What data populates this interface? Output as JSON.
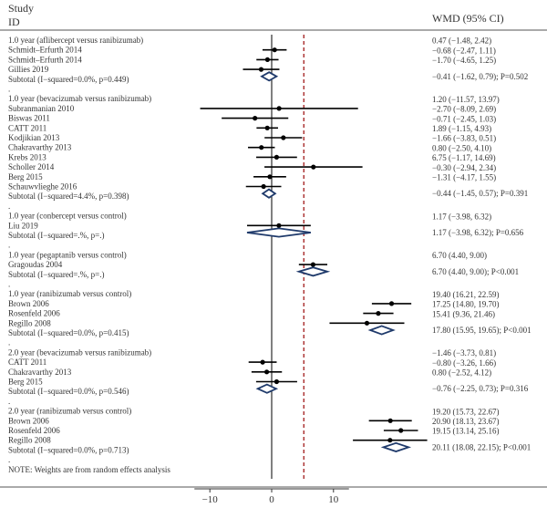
{
  "chart_data": {
    "type": "forest",
    "header": {
      "study_line1": "Study",
      "study_line2": "ID",
      "effect": "WMD (95% CI)"
    },
    "null_line": 0,
    "pooled_reference": 5.2,
    "xticks": [
      -10,
      0,
      10
    ],
    "note": "NOTE: Weights are from random effects analysis",
    "rows": [
      {
        "kind": "group",
        "label": "1.0 year (aflibercept versus ranibizumab)"
      },
      {
        "kind": "study",
        "label": "Schmidt–Erfurth 2014",
        "est": 0.47,
        "lo": -1.48,
        "hi": 2.42,
        "text": "0.47 (−1.48, 2.42)"
      },
      {
        "kind": "study",
        "label": "Schmidt–Erfurth 2014",
        "est": -0.68,
        "lo": -2.47,
        "hi": 1.11,
        "text": "−0.68 (−2.47, 1.11)"
      },
      {
        "kind": "study",
        "label": "Gillies 2019",
        "est": -1.7,
        "lo": -4.65,
        "hi": 1.25,
        "text": "−1.70 (−4.65, 1.25)"
      },
      {
        "kind": "subtotal",
        "label": "Subtotal (I−squared=0.0%, p=0.449)",
        "est": -0.41,
        "lo": -1.62,
        "hi": 0.79,
        "text": "−0.41 (−1.62, 0.79); P=0.502"
      },
      {
        "kind": "spacer",
        "label": "."
      },
      {
        "kind": "group",
        "label": "1.0 year (bevacizumab versus ranibizumab)"
      },
      {
        "kind": "study",
        "label": "Subranmanian 2010",
        "est": 1.2,
        "lo": -11.57,
        "hi": 13.97,
        "text": "1.20 (−11.57, 13.97)"
      },
      {
        "kind": "study",
        "label": "Biswas 2011",
        "est": -2.7,
        "lo": -8.09,
        "hi": 2.69,
        "text": "−2.70 (−8.09, 2.69)"
      },
      {
        "kind": "study",
        "label": "CATT 2011",
        "est": -0.71,
        "lo": -2.45,
        "hi": 1.03,
        "text": "−0.71 (−2.45, 1.03)"
      },
      {
        "kind": "study",
        "label": "Kodjikian 2013",
        "est": 1.89,
        "lo": -1.15,
        "hi": 4.93,
        "text": "1.89 (−1.15, 4.93)"
      },
      {
        "kind": "study",
        "label": "Chakravarthy 2013",
        "est": -1.66,
        "lo": -3.83,
        "hi": 0.51,
        "text": "−1.66 (−3.83, 0.51)"
      },
      {
        "kind": "study",
        "label": "Krebs 2013",
        "est": 0.8,
        "lo": -2.5,
        "hi": 4.1,
        "text": "0.80 (−2.50, 4.10)"
      },
      {
        "kind": "study",
        "label": "Scholler 2014",
        "est": 6.75,
        "lo": -1.17,
        "hi": 14.69,
        "text": "6.75 (−1.17, 14.69)"
      },
      {
        "kind": "study",
        "label": "Berg 2015",
        "est": -0.3,
        "lo": -2.94,
        "hi": 2.34,
        "text": "−0.30 (−2.94, 2.34)"
      },
      {
        "kind": "study",
        "label": "Schauwvlieghe 2016",
        "est": -1.31,
        "lo": -4.17,
        "hi": 1.55,
        "text": "−1.31 (−4.17, 1.55)"
      },
      {
        "kind": "subtotal",
        "label": "Subtotal (I−squared=4.4%, p=0.398)",
        "est": -0.44,
        "lo": -1.45,
        "hi": 0.57,
        "text": "−0.44 (−1.45, 0.57); P=0.391"
      },
      {
        "kind": "spacer",
        "label": "."
      },
      {
        "kind": "group",
        "label": "1.0 year (conbercept versus control)"
      },
      {
        "kind": "study",
        "label": "Liu 2019",
        "est": 1.17,
        "lo": -3.98,
        "hi": 6.32,
        "text": "1.17 (−3.98, 6.32)"
      },
      {
        "kind": "subtotal",
        "label": "Subtotal (I−squared=.%, p=.)",
        "est": 1.17,
        "lo": -3.98,
        "hi": 6.32,
        "text": "1.17 (−3.98, 6.32); P=0.656"
      },
      {
        "kind": "spacer",
        "label": "."
      },
      {
        "kind": "group",
        "label": "1.0 year (pegaptanib versus control)"
      },
      {
        "kind": "study",
        "label": "Gragoudas 2004",
        "est": 6.7,
        "lo": 4.4,
        "hi": 9.0,
        "text": "6.70 (4.40, 9.00)"
      },
      {
        "kind": "subtotal",
        "label": "Subtotal (I−squared=.%, p=.)",
        "est": 6.7,
        "lo": 4.4,
        "hi": 9.0,
        "text": "6.70 (4.40, 9.00); P<0.001"
      },
      {
        "kind": "spacer",
        "label": "."
      },
      {
        "kind": "group",
        "label": "1.0 year (ranibizumab versus control)"
      },
      {
        "kind": "study",
        "label": "Brown 2006",
        "est": 19.4,
        "lo": 16.21,
        "hi": 22.59,
        "text": "19.40 (16.21, 22.59)"
      },
      {
        "kind": "study",
        "label": "Rosenfeld 2006",
        "est": 17.25,
        "lo": 14.8,
        "hi": 19.7,
        "text": "17.25 (14.80, 19.70)"
      },
      {
        "kind": "study",
        "label": "Regillo 2008",
        "est": 15.41,
        "lo": 9.36,
        "hi": 21.46,
        "text": "15.41 (9.36, 21.46)"
      },
      {
        "kind": "subtotal",
        "label": "Subtotal (I−squared=0.0%, p=0.415)",
        "est": 17.8,
        "lo": 15.95,
        "hi": 19.65,
        "text": "17.80 (15.95, 19.65); P<0.001"
      },
      {
        "kind": "spacer",
        "label": "."
      },
      {
        "kind": "group",
        "label": "2.0 year (bevacizumab versus ranibizumab)"
      },
      {
        "kind": "study",
        "label": "CATT 2011",
        "est": -1.46,
        "lo": -3.73,
        "hi": 0.81,
        "text": "−1.46 (−3.73, 0.81)"
      },
      {
        "kind": "study",
        "label": "Chakravarthy 2013",
        "est": -0.8,
        "lo": -3.26,
        "hi": 1.66,
        "text": "−0.80 (−3.26, 1.66)"
      },
      {
        "kind": "study",
        "label": "Berg 2015",
        "est": 0.8,
        "lo": -2.52,
        "hi": 4.12,
        "text": "0.80 (−2.52, 4.12)"
      },
      {
        "kind": "subtotal",
        "label": "Subtotal (I−squared=0.0%, p=0.546)",
        "est": -0.76,
        "lo": -2.25,
        "hi": 0.73,
        "text": "−0.76 (−2.25, 0.73); P=0.316"
      },
      {
        "kind": "spacer",
        "label": "."
      },
      {
        "kind": "group",
        "label": "2.0 year (ranibizumab versus control)"
      },
      {
        "kind": "study",
        "label": "Brown 2006",
        "est": 19.2,
        "lo": 15.73,
        "hi": 22.67,
        "text": "19.20 (15.73, 22.67)"
      },
      {
        "kind": "study",
        "label": "Rosenfeld 2006",
        "est": 20.9,
        "lo": 18.13,
        "hi": 23.67,
        "text": "20.90 (18.13, 23.67)"
      },
      {
        "kind": "study",
        "label": "Regillo 2008",
        "est": 19.15,
        "lo": 13.14,
        "hi": 25.16,
        "text": "19.15 (13.14, 25.16)"
      },
      {
        "kind": "subtotal",
        "label": "Subtotal (I−squared=0.0%, p=0.713)",
        "est": 20.11,
        "lo": 18.08,
        "hi": 22.15,
        "text": "20.11 (18.08, 22.15); P<0.001"
      },
      {
        "kind": "spacer",
        "label": "."
      },
      {
        "kind": "note",
        "label": "NOTE: Weights are from random effects analysis"
      }
    ],
    "colors": {
      "diamond": "#1f3a6b",
      "ci": "#000000",
      "null_line": "#000000",
      "ref_line": "#a11a1a"
    }
  }
}
